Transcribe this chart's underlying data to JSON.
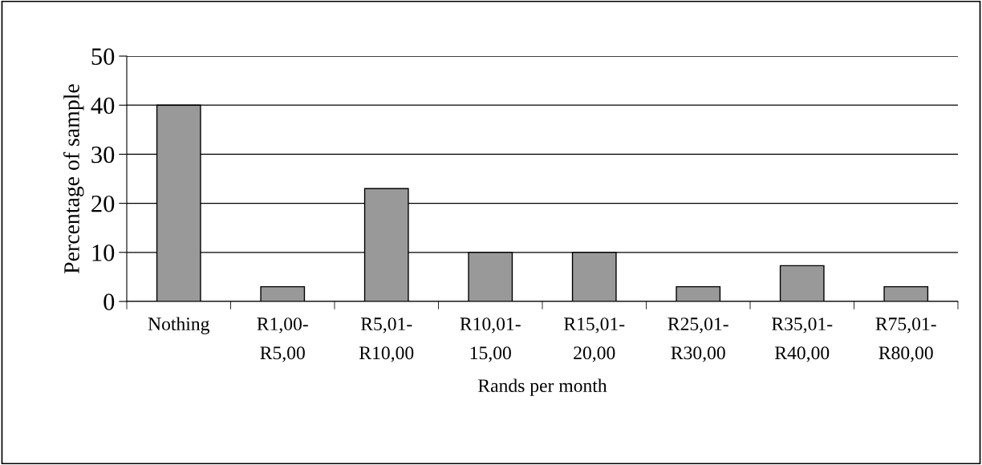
{
  "chart_data": {
    "type": "bar",
    "xlabel": "Rands per month",
    "ylabel": "Percentage of sample",
    "categories": [
      "Nothing",
      "R1,00-\nR5,00",
      "R5,01-\nR10,00",
      "R10,01-\n15,00",
      "R15,01-\n20,00",
      "R25,01-\nR30,00",
      "R35,01-\nR40,00",
      "R75,01-\nR80,00"
    ],
    "values": [
      40,
      3,
      23,
      10,
      10,
      3,
      7.3,
      3
    ],
    "color": "#999999",
    "ylim": [
      0,
      50
    ],
    "yticks": [
      0,
      10,
      20,
      30,
      40,
      50
    ],
    "grid": "y",
    "legend": false
  }
}
